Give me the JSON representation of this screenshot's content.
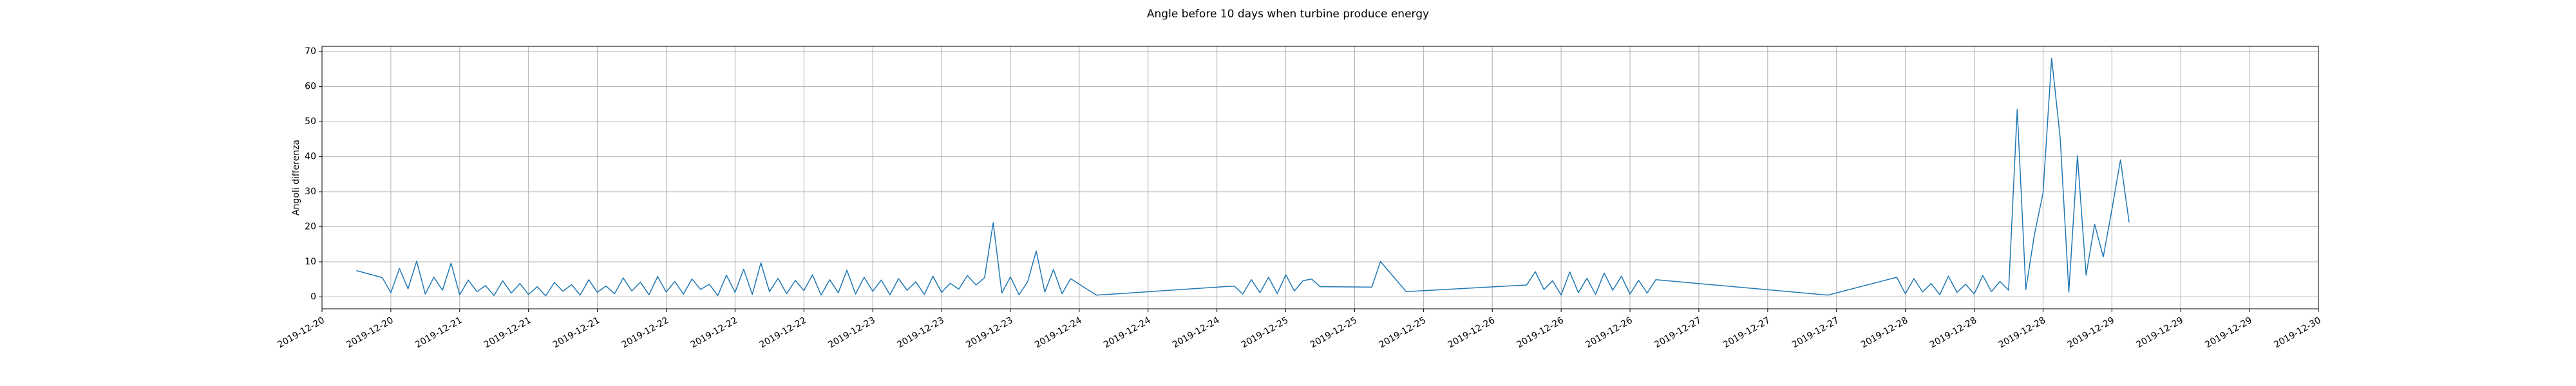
{
  "chart_data": {
    "type": "line",
    "title": "Angle before 10 days when turbine produce energy",
    "y_label": "Angoli differenza",
    "color": "#1f77b4",
    "grid": true,
    "x": [
      "2019-12-20T12:00",
      "2019-12-20T15:00",
      "2019-12-20T16:00",
      "2019-12-20T17:00",
      "2019-12-20T18:00",
      "2019-12-20T19:00",
      "2019-12-20T20:00",
      "2019-12-20T21:00",
      "2019-12-20T22:00",
      "2019-12-20T23:00",
      "2019-12-21T00:00",
      "2019-12-21T01:00",
      "2019-12-21T02:00",
      "2019-12-21T03:00",
      "2019-12-21T04:00",
      "2019-12-21T05:00",
      "2019-12-21T06:00",
      "2019-12-21T07:00",
      "2019-12-21T08:00",
      "2019-12-21T09:00",
      "2019-12-21T10:00",
      "2019-12-21T11:00",
      "2019-12-21T12:00",
      "2019-12-21T13:00",
      "2019-12-21T14:00",
      "2019-12-21T15:00",
      "2019-12-21T16:00",
      "2019-12-21T17:00",
      "2019-12-21T18:00",
      "2019-12-21T19:00",
      "2019-12-21T20:00",
      "2019-12-21T21:00",
      "2019-12-21T22:00",
      "2019-12-21T23:00",
      "2019-12-22T00:00",
      "2019-12-22T01:00",
      "2019-12-22T02:00",
      "2019-12-22T03:00",
      "2019-12-22T04:00",
      "2019-12-22T05:00",
      "2019-12-22T06:00",
      "2019-12-22T07:00",
      "2019-12-22T08:00",
      "2019-12-22T09:00",
      "2019-12-22T10:00",
      "2019-12-22T11:00",
      "2019-12-22T12:00",
      "2019-12-22T13:00",
      "2019-12-22T14:00",
      "2019-12-22T15:00",
      "2019-12-22T16:00",
      "2019-12-22T17:00",
      "2019-12-22T18:00",
      "2019-12-22T19:00",
      "2019-12-22T20:00",
      "2019-12-22T21:00",
      "2019-12-22T22:00",
      "2019-12-22T23:00",
      "2019-12-23T00:00",
      "2019-12-23T01:00",
      "2019-12-23T02:00",
      "2019-12-23T03:00",
      "2019-12-23T04:00",
      "2019-12-23T05:00",
      "2019-12-23T06:00",
      "2019-12-23T07:00",
      "2019-12-23T08:00",
      "2019-12-23T09:00",
      "2019-12-23T10:00",
      "2019-12-23T11:00",
      "2019-12-23T12:00",
      "2019-12-23T13:00",
      "2019-12-23T14:00",
      "2019-12-23T15:00",
      "2019-12-23T16:00",
      "2019-12-23T17:00",
      "2019-12-23T18:00",
      "2019-12-23T19:00",
      "2019-12-23T20:00",
      "2019-12-23T21:00",
      "2019-12-23T22:00",
      "2019-12-23T23:00",
      "2019-12-24T00:00",
      "2019-12-24T02:00",
      "2019-12-24T18:00",
      "2019-12-24T19:00",
      "2019-12-24T20:00",
      "2019-12-24T21:00",
      "2019-12-24T22:00",
      "2019-12-24T23:00",
      "2019-12-25T00:00",
      "2019-12-25T01:00",
      "2019-12-25T02:00",
      "2019-12-25T03:00",
      "2019-12-25T04:00",
      "2019-12-25T10:00",
      "2019-12-25T11:00",
      "2019-12-25T14:00",
      "2019-12-26T04:00",
      "2019-12-26T05:00",
      "2019-12-26T06:00",
      "2019-12-26T07:00",
      "2019-12-26T08:00",
      "2019-12-26T09:00",
      "2019-12-26T10:00",
      "2019-12-26T11:00",
      "2019-12-26T12:00",
      "2019-12-26T13:00",
      "2019-12-26T14:00",
      "2019-12-26T15:00",
      "2019-12-26T16:00",
      "2019-12-26T17:00",
      "2019-12-26T18:00",
      "2019-12-26T19:00",
      "2019-12-27T15:00",
      "2019-12-27T23:00",
      "2019-12-28T00:00",
      "2019-12-28T01:00",
      "2019-12-28T02:00",
      "2019-12-28T03:00",
      "2019-12-28T04:00",
      "2019-12-28T05:00",
      "2019-12-28T06:00",
      "2019-12-28T07:00",
      "2019-12-28T08:00",
      "2019-12-28T09:00",
      "2019-12-28T10:00",
      "2019-12-28T11:00",
      "2019-12-28T12:00",
      "2019-12-28T13:00",
      "2019-12-28T14:00",
      "2019-12-28T15:00",
      "2019-12-28T16:00",
      "2019-12-28T17:00",
      "2019-12-28T18:00",
      "2019-12-28T19:00",
      "2019-12-28T20:00",
      "2019-12-28T21:00",
      "2019-12-28T22:00",
      "2019-12-28T23:00",
      "2019-12-29T00:00",
      "2019-12-29T01:00",
      "2019-12-29T02:00"
    ],
    "values": [
      7.5,
      5.5,
      1.2,
      8.1,
      2.3,
      10.2,
      0.8,
      5.6,
      1.9,
      9.6,
      0.6,
      4.8,
      1.5,
      3.2,
      0.4,
      4.6,
      1.1,
      3.8,
      0.7,
      2.9,
      0.3,
      4.1,
      1.6,
      3.5,
      0.5,
      4.9,
      1.3,
      3.1,
      0.9,
      5.4,
      1.7,
      4.2,
      0.6,
      5.8,
      1.4,
      4.4,
      0.8,
      5.1,
      2.1,
      3.6,
      0.4,
      6.2,
      1.3,
      7.9,
      0.7,
      9.7,
      1.5,
      5.3,
      0.9,
      4.7,
      1.8,
      6.3,
      0.5,
      4.9,
      1.2,
      7.6,
      0.8,
      5.6,
      1.6,
      4.8,
      0.6,
      5.2,
      1.9,
      4.3,
      0.7,
      5.9,
      1.3,
      3.9,
      2.2,
      6.1,
      3.4,
      5.5,
      21.2,
      1.1,
      5.7,
      0.6,
      4.3,
      13.1,
      1.4,
      7.8,
      0.9,
      5.2,
      3.6,
      0.5,
      3.1,
      0.8,
      4.9,
      1.2,
      5.6,
      0.9,
      6.3,
      1.7,
      4.6,
      5.1,
      2.9,
      2.8,
      10.1,
      1.5,
      3.4,
      7.2,
      2.1,
      4.6,
      0.5,
      7.1,
      1.2,
      5.3,
      0.7,
      6.8,
      1.9,
      5.9,
      0.8,
      4.7,
      1.1,
      4.9,
      0.5,
      5.6,
      0.9,
      5.2,
      1.4,
      3.8,
      0.6,
      5.9,
      1.3,
      3.6,
      0.8,
      6.1,
      1.5,
      4.4,
      1.9,
      53.5,
      2.1,
      17.8,
      29.6,
      68.1,
      45.2,
      1.4,
      40.3,
      6.2,
      20.7,
      11.4,
      24.9,
      39.1,
      21.3
    ],
    "xlim": [
      "2019-12-20T08:00",
      "2019-12-30T00:00"
    ],
    "xticks": [
      {
        "value": "2019-12-20T08:00",
        "label": "2019-12-20"
      },
      {
        "value": "2019-12-20T16:00",
        "label": "2019-12-20"
      },
      {
        "value": "2019-12-21T00:00",
        "label": "2019-12-21"
      },
      {
        "value": "2019-12-21T08:00",
        "label": "2019-12-21"
      },
      {
        "value": "2019-12-21T16:00",
        "label": "2019-12-21"
      },
      {
        "value": "2019-12-22T00:00",
        "label": "2019-12-22"
      },
      {
        "value": "2019-12-22T08:00",
        "label": "2019-12-22"
      },
      {
        "value": "2019-12-22T16:00",
        "label": "2019-12-22"
      },
      {
        "value": "2019-12-23T00:00",
        "label": "2019-12-23"
      },
      {
        "value": "2019-12-23T08:00",
        "label": "2019-12-23"
      },
      {
        "value": "2019-12-23T16:00",
        "label": "2019-12-23"
      },
      {
        "value": "2019-12-24T00:00",
        "label": "2019-12-24"
      },
      {
        "value": "2019-12-24T08:00",
        "label": "2019-12-24"
      },
      {
        "value": "2019-12-24T16:00",
        "label": "2019-12-24"
      },
      {
        "value": "2019-12-25T00:00",
        "label": "2019-12-25"
      },
      {
        "value": "2019-12-25T08:00",
        "label": "2019-12-25"
      },
      {
        "value": "2019-12-25T16:00",
        "label": "2019-12-25"
      },
      {
        "value": "2019-12-26T00:00",
        "label": "2019-12-26"
      },
      {
        "value": "2019-12-26T08:00",
        "label": "2019-12-26"
      },
      {
        "value": "2019-12-26T16:00",
        "label": "2019-12-26"
      },
      {
        "value": "2019-12-27T00:00",
        "label": "2019-12-27"
      },
      {
        "value": "2019-12-27T08:00",
        "label": "2019-12-27"
      },
      {
        "value": "2019-12-27T16:00",
        "label": "2019-12-27"
      },
      {
        "value": "2019-12-28T00:00",
        "label": "2019-12-28"
      },
      {
        "value": "2019-12-28T08:00",
        "label": "2019-12-28"
      },
      {
        "value": "2019-12-28T16:00",
        "label": "2019-12-28"
      },
      {
        "value": "2019-12-29T00:00",
        "label": "2019-12-29"
      },
      {
        "value": "2019-12-29T08:00",
        "label": "2019-12-29"
      },
      {
        "value": "2019-12-29T16:00",
        "label": "2019-12-29"
      },
      {
        "value": "2019-12-30T00:00",
        "label": "2019-12-30"
      }
    ],
    "ylim": [
      -3.4,
      71.5
    ],
    "yticks": [
      0,
      10,
      20,
      30,
      40,
      50,
      60,
      70
    ]
  }
}
